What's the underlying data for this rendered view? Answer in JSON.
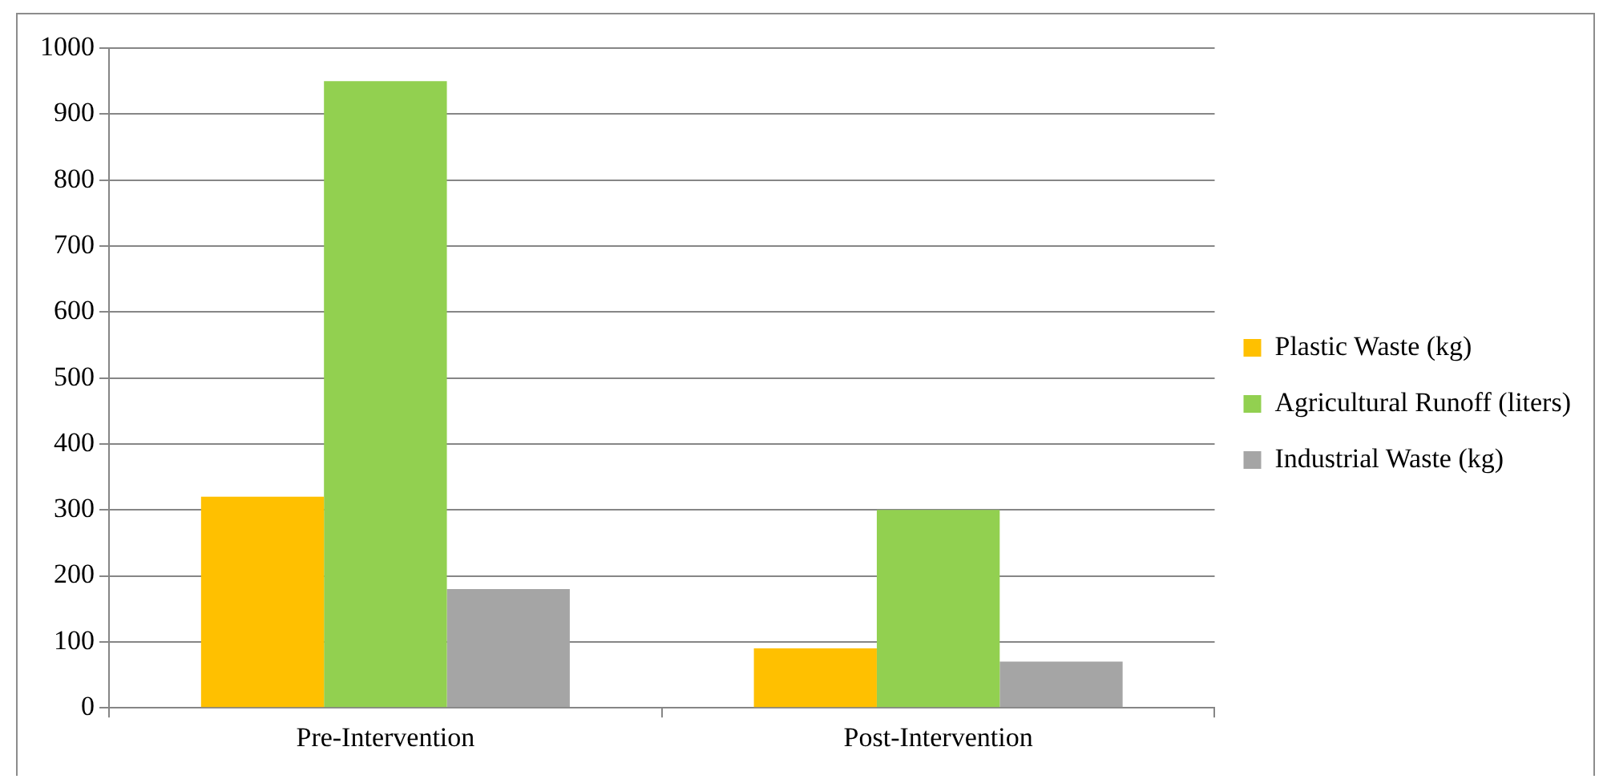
{
  "chart_data": {
    "type": "bar",
    "categories": [
      "Pre-Intervention",
      "Post-Intervention"
    ],
    "series": [
      {
        "name": "Plastic Waste (kg)",
        "color": "#ffc000",
        "values": [
          320,
          90
        ]
      },
      {
        "name": "Agricultural Runoff (liters)",
        "color": "#92d050",
        "values": [
          950,
          300
        ]
      },
      {
        "name": "Industrial Waste (kg)",
        "color": "#a5a5a5",
        "values": [
          180,
          70
        ]
      }
    ],
    "ylim": [
      0,
      1000
    ],
    "yticks": [
      0,
      100,
      200,
      300,
      400,
      500,
      600,
      700,
      800,
      900,
      1000
    ],
    "grid": "y",
    "legend": "right"
  }
}
